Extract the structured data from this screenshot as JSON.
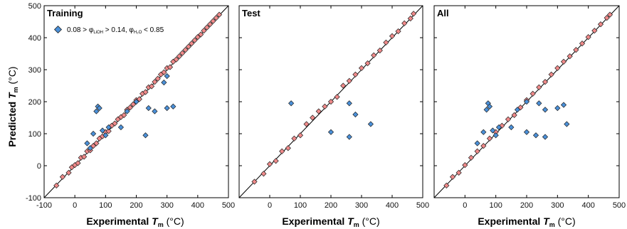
{
  "figure": {
    "xlabel_prefix": "Experimental ",
    "xlabel_var": "T",
    "xlabel_sub": "m",
    "xlabel_unit": " (°C)",
    "ylabel_prefix": "Predicted ",
    "ylabel_var": "T",
    "ylabel_sub": "m",
    "ylabel_unit": " (°C)",
    "legend": {
      "text_a": "0.08 > φ",
      "sub_a": "LiOH",
      "text_b": " > 0.14,  φ",
      "sub_b": "H₂O",
      "text_c": " < 0.85"
    },
    "colors": {
      "pink": "#f08a8a",
      "blue": "#4a90d9",
      "edge": "#222222"
    }
  },
  "chart_data": [
    {
      "type": "scatter",
      "title": "Training",
      "xlim": [
        -100,
        500
      ],
      "ylim": [
        -100,
        500
      ],
      "xticks": [
        -100,
        0,
        100,
        200,
        300,
        400,
        500
      ],
      "yticks": [
        -100,
        0,
        100,
        200,
        300,
        400,
        500
      ],
      "ticks_shown": [
        "-100",
        "0",
        "100",
        "200",
        "300",
        "400",
        "500"
      ],
      "ytick_labels": [
        "-100",
        "0",
        "100",
        "200",
        "300",
        "400",
        "500"
      ],
      "diagonal": true,
      "series": [
        {
          "name": "",
          "color": "pink",
          "points": [
            [
              -60,
              -62
            ],
            [
              -40,
              -35
            ],
            [
              -20,
              -22
            ],
            [
              -10,
              -5
            ],
            [
              0,
              2
            ],
            [
              10,
              8
            ],
            [
              20,
              25
            ],
            [
              30,
              28
            ],
            [
              40,
              45
            ],
            [
              50,
              48
            ],
            [
              60,
              62
            ],
            [
              70,
              70
            ],
            [
              80,
              85
            ],
            [
              90,
              92
            ],
            [
              100,
              105
            ],
            [
              110,
              108
            ],
            [
              120,
              125
            ],
            [
              130,
              132
            ],
            [
              140,
              145
            ],
            [
              150,
              152
            ],
            [
              160,
              158
            ],
            [
              170,
              175
            ],
            [
              180,
              182
            ],
            [
              190,
              192
            ],
            [
              200,
              205
            ],
            [
              210,
              208
            ],
            [
              220,
              225
            ],
            [
              230,
              230
            ],
            [
              240,
              245
            ],
            [
              250,
              248
            ],
            [
              260,
              262
            ],
            [
              270,
              272
            ],
            [
              280,
              285
            ],
            [
              290,
              292
            ],
            [
              300,
              305
            ],
            [
              310,
              308
            ],
            [
              320,
              325
            ],
            [
              330,
              332
            ],
            [
              340,
              342
            ],
            [
              350,
              352
            ],
            [
              360,
              362
            ],
            [
              370,
              372
            ],
            [
              380,
              382
            ],
            [
              390,
              392
            ],
            [
              400,
              402
            ],
            [
              410,
              410
            ],
            [
              420,
              422
            ],
            [
              430,
              432
            ],
            [
              440,
              442
            ],
            [
              450,
              452
            ],
            [
              460,
              462
            ],
            [
              470,
              472
            ]
          ]
        },
        {
          "name": "0.08 > φLiOH > 0.14, φH₂O < 0.85",
          "color": "blue",
          "points": [
            [
              75,
              185
            ],
            [
              80,
              180
            ],
            [
              70,
              170
            ],
            [
              60,
              100
            ],
            [
              90,
              110
            ],
            [
              100,
              95
            ],
            [
              110,
              120
            ],
            [
              150,
              120
            ],
            [
              170,
              170
            ],
            [
              200,
              200
            ],
            [
              240,
              180
            ],
            [
              260,
              170
            ],
            [
              300,
              180
            ],
            [
              320,
              185
            ],
            [
              230,
              95
            ],
            [
              290,
              260
            ],
            [
              300,
              280
            ],
            [
              40,
              70
            ],
            [
              50,
              55
            ]
          ]
        }
      ]
    },
    {
      "type": "scatter",
      "title": "Test",
      "xlim": [
        -100,
        500
      ],
      "ylim": [
        -100,
        500
      ],
      "xticks": [
        -100,
        0,
        100,
        200,
        300,
        400,
        500
      ],
      "yticks": [
        -100,
        0,
        100,
        200,
        300,
        400,
        500
      ],
      "ticks_shown": [
        "0",
        "100",
        "200",
        "300",
        "400",
        "500"
      ],
      "diagonal": true,
      "series": [
        {
          "name": "",
          "color": "pink",
          "points": [
            [
              -50,
              -50
            ],
            [
              -20,
              -25
            ],
            [
              0,
              5
            ],
            [
              20,
              15
            ],
            [
              40,
              45
            ],
            [
              60,
              55
            ],
            [
              80,
              85
            ],
            [
              100,
              95
            ],
            [
              120,
              130
            ],
            [
              140,
              150
            ],
            [
              160,
              170
            ],
            [
              180,
              185
            ],
            [
              200,
              200
            ],
            [
              220,
              215
            ],
            [
              240,
              250
            ],
            [
              260,
              265
            ],
            [
              280,
              285
            ],
            [
              300,
              305
            ],
            [
              320,
              320
            ],
            [
              340,
              345
            ],
            [
              360,
              360
            ],
            [
              380,
              385
            ],
            [
              400,
              405
            ],
            [
              420,
              420
            ],
            [
              440,
              445
            ],
            [
              460,
              460
            ],
            [
              470,
              475
            ]
          ]
        },
        {
          "name": "",
          "color": "blue",
          "points": [
            [
              70,
              195
            ],
            [
              200,
              105
            ],
            [
              260,
              195
            ],
            [
              260,
              90
            ],
            [
              280,
              160
            ],
            [
              330,
              130
            ]
          ]
        }
      ]
    },
    {
      "type": "scatter",
      "title": "All",
      "xlim": [
        -100,
        500
      ],
      "ylim": [
        -100,
        500
      ],
      "xticks": [
        -100,
        0,
        100,
        200,
        300,
        400,
        500
      ],
      "yticks": [
        -100,
        0,
        100,
        200,
        300,
        400,
        500
      ],
      "ticks_shown": [
        "0",
        "100",
        "200",
        "300",
        "400",
        "500"
      ],
      "diagonal": true,
      "series": [
        {
          "name": "",
          "color": "pink",
          "points": [
            [
              -60,
              -62
            ],
            [
              -40,
              -35
            ],
            [
              -20,
              -22
            ],
            [
              0,
              2
            ],
            [
              20,
              25
            ],
            [
              40,
              45
            ],
            [
              60,
              62
            ],
            [
              80,
              85
            ],
            [
              100,
              105
            ],
            [
              120,
              125
            ],
            [
              140,
              145
            ],
            [
              160,
              158
            ],
            [
              180,
              182
            ],
            [
              200,
              205
            ],
            [
              220,
              225
            ],
            [
              240,
              245
            ],
            [
              260,
              262
            ],
            [
              280,
              285
            ],
            [
              300,
              305
            ],
            [
              320,
              325
            ],
            [
              340,
              342
            ],
            [
              360,
              362
            ],
            [
              380,
              382
            ],
            [
              400,
              402
            ],
            [
              420,
              422
            ],
            [
              440,
              442
            ],
            [
              460,
              462
            ],
            [
              470,
              472
            ]
          ]
        },
        {
          "name": "",
          "color": "blue",
          "points": [
            [
              75,
              195
            ],
            [
              80,
              185
            ],
            [
              70,
              175
            ],
            [
              60,
              105
            ],
            [
              90,
              110
            ],
            [
              100,
              95
            ],
            [
              110,
              120
            ],
            [
              150,
              120
            ],
            [
              170,
              175
            ],
            [
              200,
              200
            ],
            [
              240,
              195
            ],
            [
              260,
              175
            ],
            [
              300,
              180
            ],
            [
              320,
              190
            ],
            [
              200,
              105
            ],
            [
              230,
              95
            ],
            [
              260,
              90
            ],
            [
              330,
              130
            ],
            [
              40,
              70
            ]
          ]
        }
      ]
    }
  ]
}
